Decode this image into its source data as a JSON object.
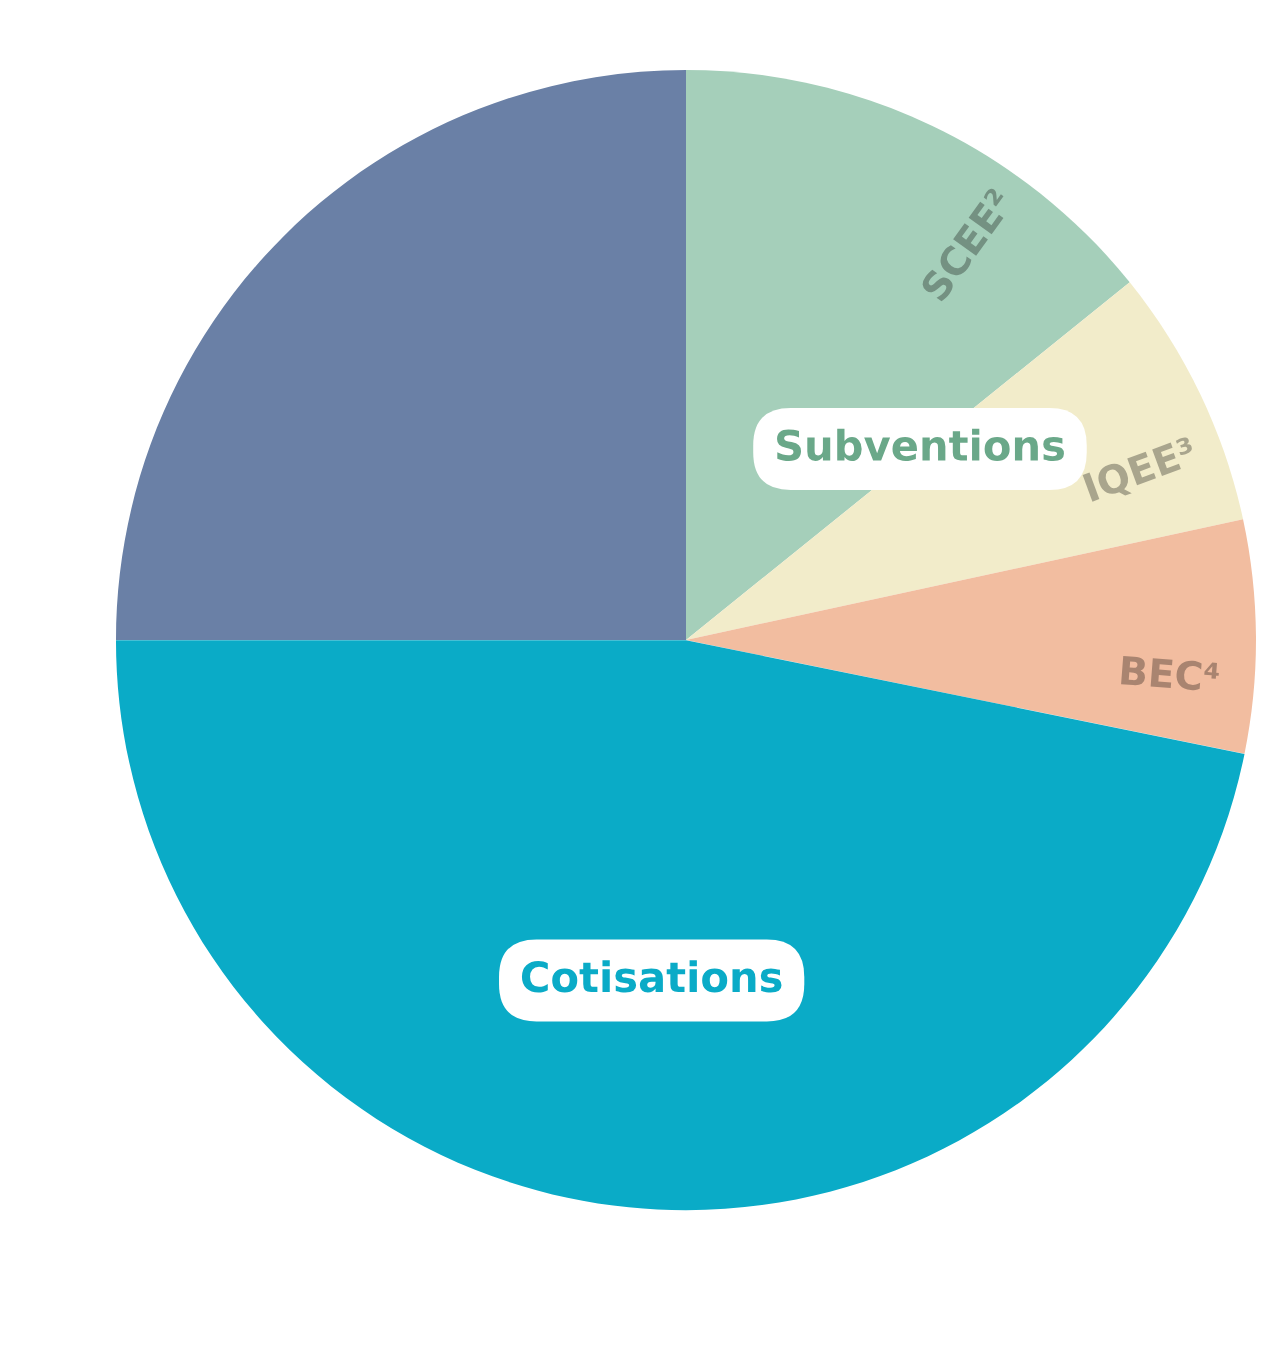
{
  "chart_data": {
    "type": "pie",
    "categories": [
      "SCEE²",
      "IQEE³",
      "BEC⁴",
      "Cotisations",
      null
    ],
    "values": [
      14.2,
      7.4,
      6.6,
      46.8,
      25.0
    ],
    "colors": [
      "#a5cfba",
      "#f2ecca",
      "#f2bda0",
      "#0aabc7",
      "#6a80a6"
    ],
    "annotations": [
      "Subventions"
    ],
    "legend": false
  }
}
